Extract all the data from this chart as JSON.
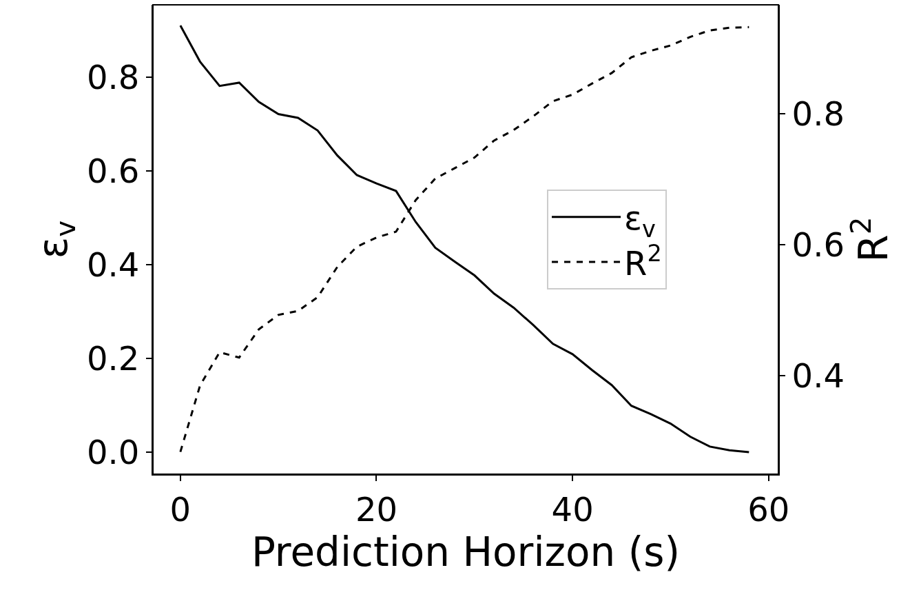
{
  "chart_data": {
    "type": "line",
    "xlabel": "Prediction Horizon (s)",
    "ylabel": "ε$_{v}$",
    "y2label": "R$^{2}$",
    "x": [
      0,
      2,
      4,
      6,
      8,
      10,
      12,
      14,
      16,
      18,
      20,
      22,
      24,
      26,
      28,
      30,
      32,
      34,
      36,
      38,
      40,
      42,
      44,
      46,
      48,
      50,
      52,
      54,
      56,
      58
    ],
    "series": [
      {
        "name": "ε$_{v}$",
        "color": "#000000",
        "line_style": "solid",
        "values": [
          0.91,
          0.833,
          0.781,
          0.788,
          0.747,
          0.721,
          0.713,
          0.686,
          0.633,
          0.591,
          0.573,
          0.557,
          0.491,
          0.436,
          0.406,
          0.377,
          0.338,
          0.308,
          0.271,
          0.231,
          0.209,
          0.175,
          0.143,
          0.099,
          0.081,
          0.061,
          0.033,
          0.012,
          0.004,
          0.0
        ]
      },
      {
        "name": "R$^{2}$",
        "color": "#000000",
        "line_style": "dashed",
        "axis": "y2",
        "values": [
          0.284,
          0.385,
          0.436,
          0.428,
          0.471,
          0.493,
          0.499,
          0.52,
          0.566,
          0.597,
          0.611,
          0.62,
          0.668,
          0.701,
          0.717,
          0.733,
          0.759,
          0.775,
          0.796,
          0.819,
          0.829,
          0.846,
          0.862,
          0.886,
          0.896,
          0.904,
          0.917,
          0.927,
          0.931,
          0.932
        ]
      }
    ],
    "xlim": [
      -2.8,
      61.0
    ],
    "xticks": [
      0,
      20,
      40,
      60
    ],
    "ylim": [
      -0.047,
      0.954
    ],
    "yticks": [
      {
        "value": 0,
        "label": "0.0"
      },
      0.2,
      0.4,
      0.6,
      0.8
    ],
    "y2lim": [
      0.25,
      0.966
    ],
    "y2ticks": [
      0.4,
      0.6,
      0.8
    ],
    "legend": "right",
    "marker": "none"
  }
}
